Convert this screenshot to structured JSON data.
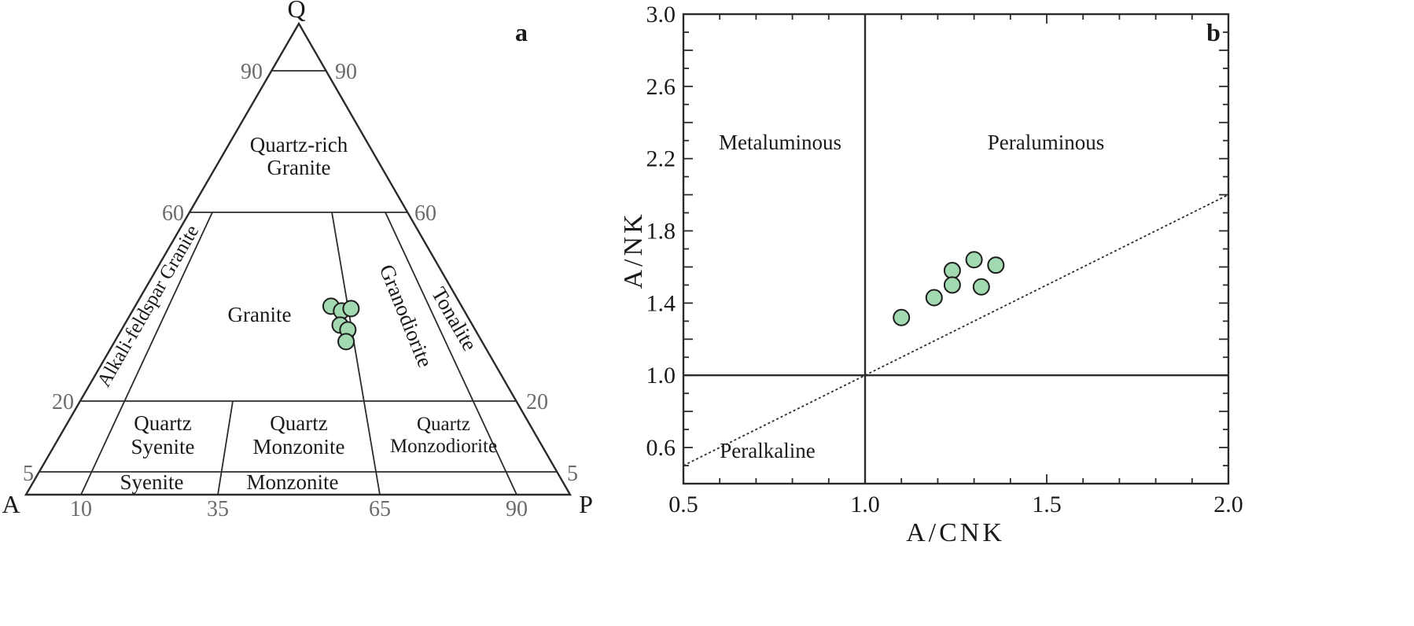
{
  "chart_data": [
    {
      "panel": "a",
      "type": "scatter",
      "diagram": "QAP ternary",
      "corners": {
        "top": "Q",
        "left": "A",
        "right": "P"
      },
      "q_tick_labels": {
        "q90": "90",
        "q60": "60",
        "q20": "20",
        "q5": "5"
      },
      "base_tick_labels": {
        "p10": "10",
        "p35": "35",
        "p65": "65",
        "p90": "90"
      },
      "fields": {
        "quartz_rich_1": "Quartz-rich",
        "quartz_rich_2": "Granite",
        "alkali_granite": "Alkali-feldspar Granite",
        "granite": "Granite",
        "granodiorite": "Granodiorite",
        "tonalite": "Tonalite",
        "q_syenite_1": "Quartz",
        "q_syenite_2": "Syenite",
        "q_monzonite_1": "Quartz",
        "q_monzonite_2": "Monzonite",
        "q_monzodiorite_1": "Quartz",
        "q_monzodiorite_2": "Monzodiorite",
        "syenite": "Syenite",
        "monzonite": "Monzonite"
      },
      "points": [
        {
          "Q": 40.0,
          "p_ratio": 0.6
        },
        {
          "Q": 39.0,
          "p_ratio": 0.63
        },
        {
          "Q": 39.5,
          "p_ratio": 0.66
        },
        {
          "Q": 36.0,
          "p_ratio": 0.62
        },
        {
          "Q": 35.0,
          "p_ratio": 0.64
        },
        {
          "Q": 32.5,
          "p_ratio": 0.63
        }
      ]
    },
    {
      "panel": "b",
      "type": "scatter",
      "xlabel": "A/CNK",
      "ylabel": "A/NK",
      "xlim": [
        0.5,
        2.0
      ],
      "ylim": [
        0.4,
        3.0
      ],
      "x_ticks": [
        {
          "v": 0.5,
          "label": "0.5"
        },
        {
          "v": 1.0,
          "label": "1.0"
        },
        {
          "v": 1.5,
          "label": "1.5"
        },
        {
          "v": 2.0,
          "label": "2.0"
        }
      ],
      "y_ticks": [
        {
          "v": 0.6,
          "label": "0.6"
        },
        {
          "v": 1.0,
          "label": "1.0"
        },
        {
          "v": 1.4,
          "label": "1.4"
        },
        {
          "v": 1.8,
          "label": "1.8"
        },
        {
          "v": 2.2,
          "label": "2.2"
        },
        {
          "v": 2.6,
          "label": "2.6"
        },
        {
          "v": 3.0,
          "label": "3.0"
        }
      ],
      "regions": {
        "metaluminous": "Metaluminous",
        "peraluminous": "Peraluminous",
        "peralkaline": "Peralkaline"
      },
      "boundary_lines": {
        "vertical_x": 1.0,
        "horizontal_y": 1.0,
        "dashed_from": [
          0.5,
          0.5
        ],
        "dashed_to": [
          2.0,
          2.0
        ]
      },
      "points": [
        {
          "x": 1.1,
          "y": 1.32
        },
        {
          "x": 1.19,
          "y": 1.43
        },
        {
          "x": 1.24,
          "y": 1.58
        },
        {
          "x": 1.24,
          "y": 1.5
        },
        {
          "x": 1.3,
          "y": 1.64
        },
        {
          "x": 1.32,
          "y": 1.49
        },
        {
          "x": 1.36,
          "y": 1.61
        }
      ]
    }
  ],
  "panel_labels": {
    "a": "a",
    "b": "b"
  },
  "colors": {
    "marker_fill": "#a3d9b1",
    "marker_stroke": "#1d1d1d",
    "line": "#2b2b2b"
  }
}
